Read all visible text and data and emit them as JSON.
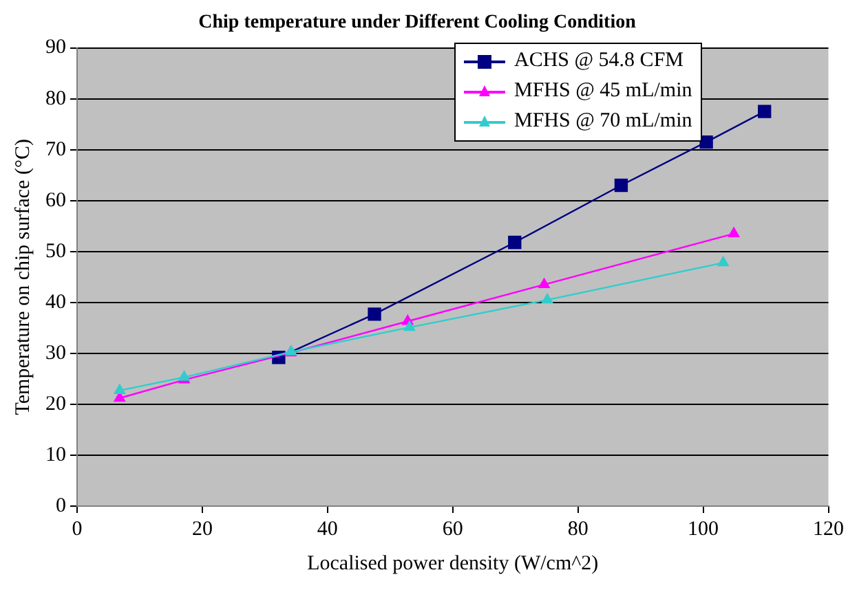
{
  "chart_data": {
    "type": "line",
    "title": "Chip temperature under Different Cooling Condition",
    "xlabel": "Localised power density (W/cm^2)",
    "ylabel": "Temperature on chip surface (°C)",
    "xlim": [
      0,
      120
    ],
    "xticks": [
      0,
      20,
      40,
      60,
      80,
      100,
      120
    ],
    "ylim": [
      0,
      90
    ],
    "yticks": [
      0,
      10,
      20,
      30,
      40,
      50,
      60,
      70,
      80,
      90
    ],
    "grid": "y",
    "legend": "top right",
    "series": [
      {
        "name": "ACHS @ 54.8 CFM",
        "color": "#000080",
        "marker": "square",
        "x": [
          32.2,
          47.5,
          69.9,
          86.9,
          100.5,
          109.8
        ],
        "values": [
          29.2,
          37.7,
          51.8,
          63,
          71.5,
          77.5
        ]
      },
      {
        "name": "MFHS @ 45 mL/min",
        "color": "#ff00ff",
        "marker": "triangle",
        "x": [
          6.8,
          17.1,
          34.1,
          52.8,
          74.6,
          104.9
        ],
        "values": [
          21.2,
          24.8,
          30.1,
          36.3,
          43.5,
          53.5
        ]
      },
      {
        "name": "MFHS @ 70 mL/min",
        "color": "#33cccc",
        "marker": "triangle",
        "x": [
          6.8,
          17.1,
          34.2,
          53.1,
          75.1,
          103.2
        ],
        "values": [
          22.7,
          25.3,
          30.3,
          35.1,
          40.5,
          47.8
        ]
      }
    ]
  }
}
